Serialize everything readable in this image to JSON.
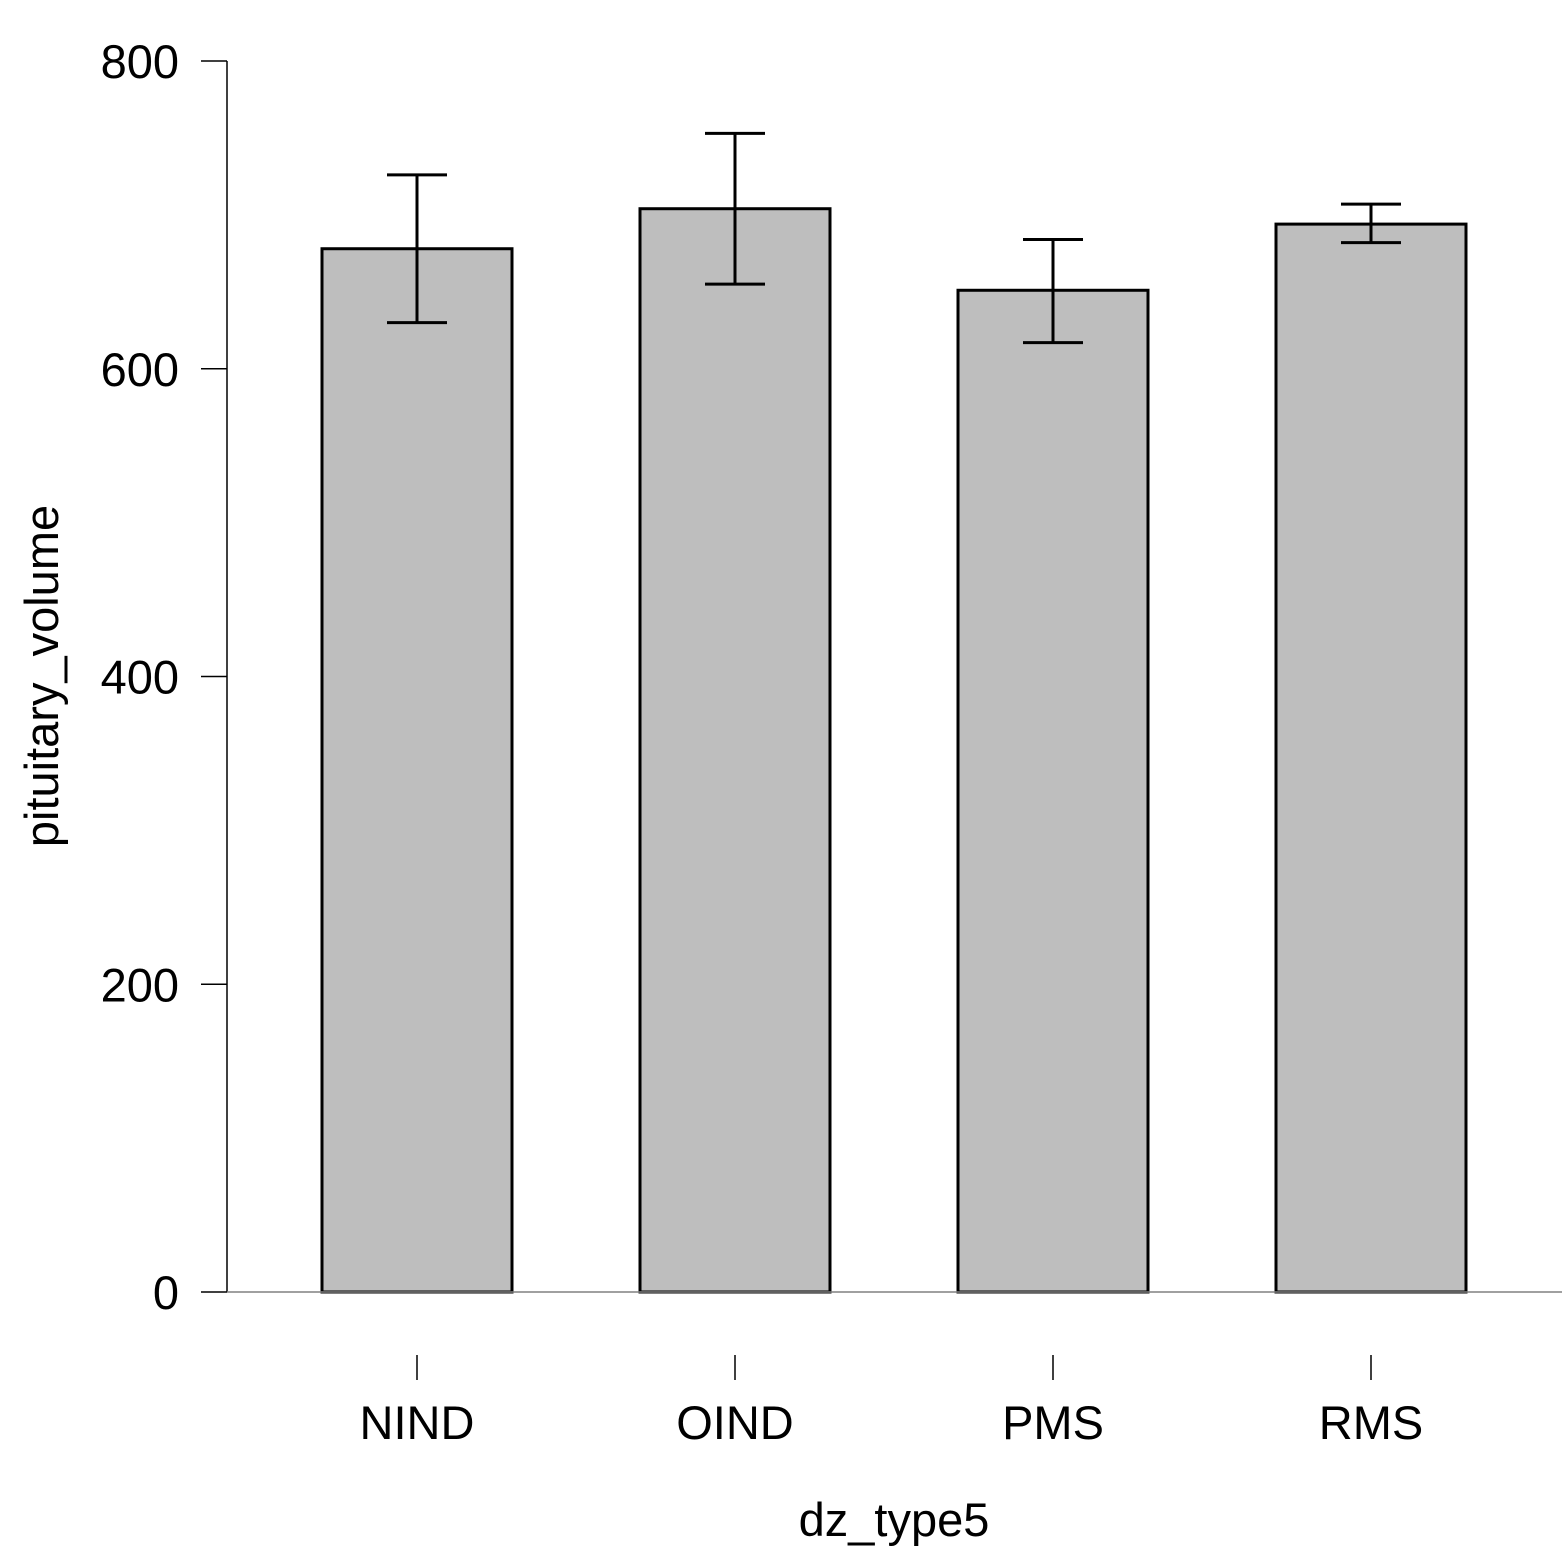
{
  "chart_data": {
    "type": "bar",
    "title": "",
    "xlabel": "dz_type5",
    "ylabel": "pituitary_volume",
    "categories": [
      "NIND",
      "OIND",
      "PMS",
      "RMS"
    ],
    "values": [
      678,
      704,
      651,
      694
    ],
    "error_bars": {
      "lower": [
        630,
        655,
        617,
        682
      ],
      "upper": [
        726,
        753,
        684,
        707
      ]
    },
    "ylim": [
      0,
      800
    ],
    "yticks": [
      0,
      200,
      400,
      600,
      800
    ],
    "ytick_labels": [
      "0",
      "200",
      "400",
      "600",
      "800"
    ],
    "grid": false,
    "legend": "none",
    "colors": {
      "bar_fill": "#bebebe",
      "bar_stroke": "#000000",
      "baseline": "#808080",
      "axis": "#000000"
    }
  }
}
